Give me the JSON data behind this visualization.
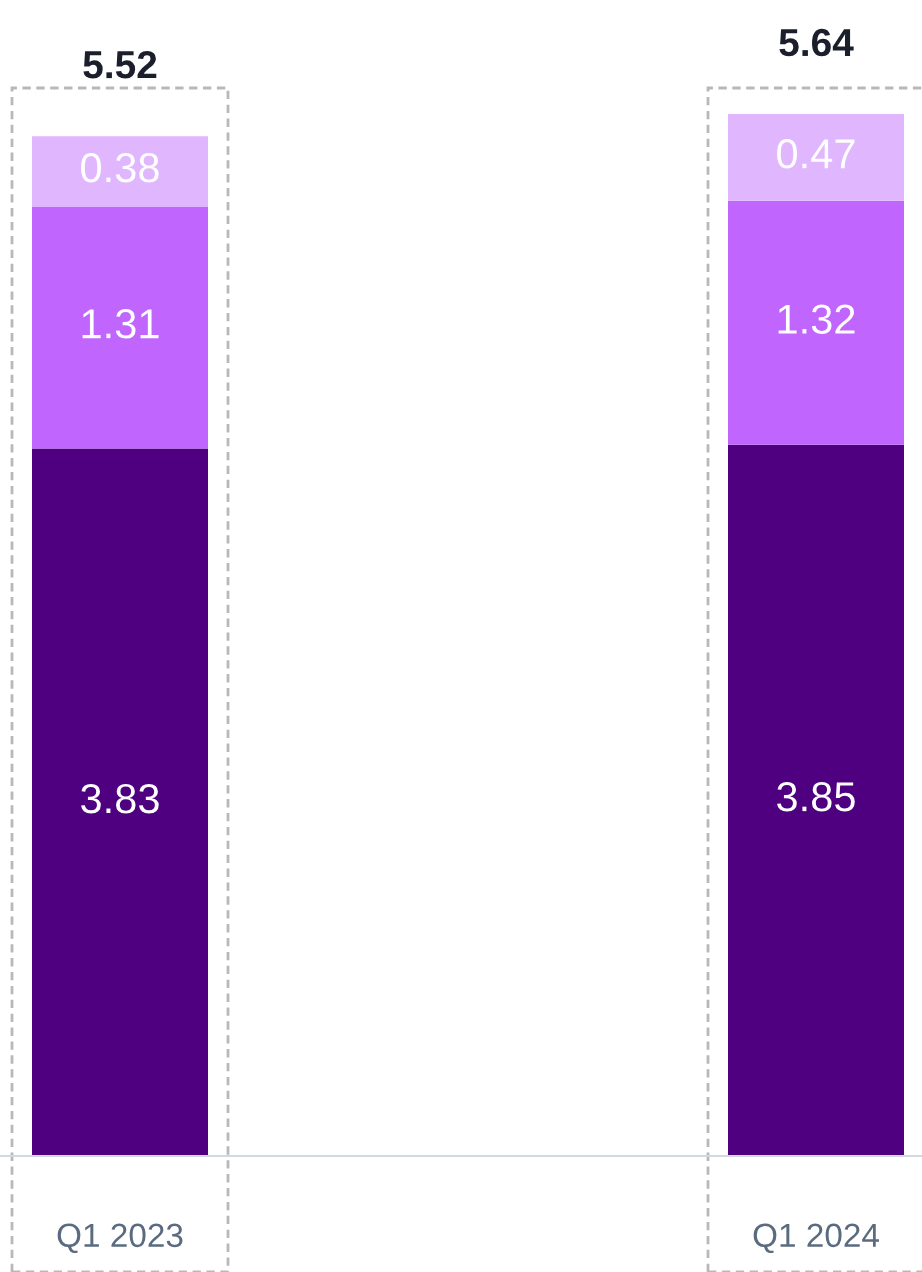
{
  "chart_data": {
    "type": "bar",
    "stacked": true,
    "data_labels": true,
    "legend": false,
    "grid": false,
    "categories": [
      "Q1 2023",
      "Q1 2024"
    ],
    "series": [
      {
        "color": "#4f0080",
        "values": [
          3.83,
          3.85
        ]
      },
      {
        "color": "#c066ff",
        "values": [
          1.31,
          1.32
        ]
      },
      {
        "color": "#e0b6ff",
        "values": [
          0.38,
          0.47
        ]
      }
    ],
    "totals": [
      "5.52",
      "5.64"
    ]
  }
}
